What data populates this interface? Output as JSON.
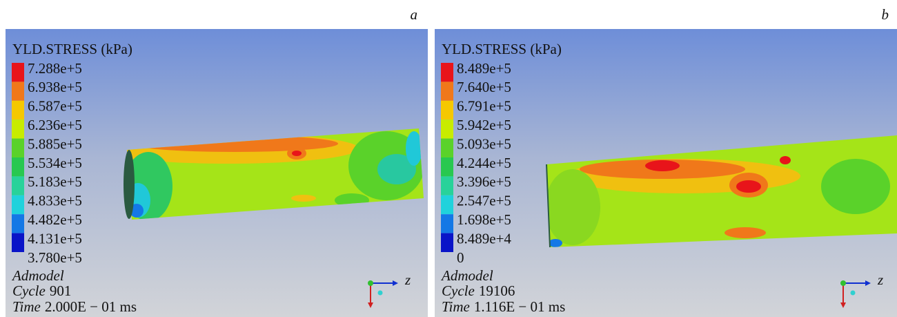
{
  "panels": [
    {
      "label": "a",
      "legend_title": "YLD.STRESS (kPa)",
      "legend_values": [
        "7.288e+5",
        "6.938e+5",
        "6.587e+5",
        "6.236e+5",
        "5.885e+5",
        "5.534e+5",
        "5.183e+5",
        "4.833e+5",
        "4.482e+5",
        "4.131e+5",
        "3.780e+5"
      ],
      "model": "Admodel",
      "cycle_label": "Cycle",
      "cycle": "901",
      "time_label": "Time",
      "time": "2.000E − 01 ms",
      "axis_label": "z"
    },
    {
      "label": "b",
      "legend_title": "YLD.STRESS (kPa)",
      "legend_values": [
        "8.489e+5",
        "7.640e+5",
        "6.791e+5",
        "5.942e+5",
        "5.093e+5",
        "4.244e+5",
        "3.396e+5",
        "2.547e+5",
        "1.698e+5",
        "8.489e+4",
        "0"
      ],
      "model": "Admodel",
      "cycle_label": "Cycle",
      "cycle": "19106",
      "time_label": "Time",
      "time": "1.116E − 01 ms",
      "axis_label": "z"
    }
  ]
}
